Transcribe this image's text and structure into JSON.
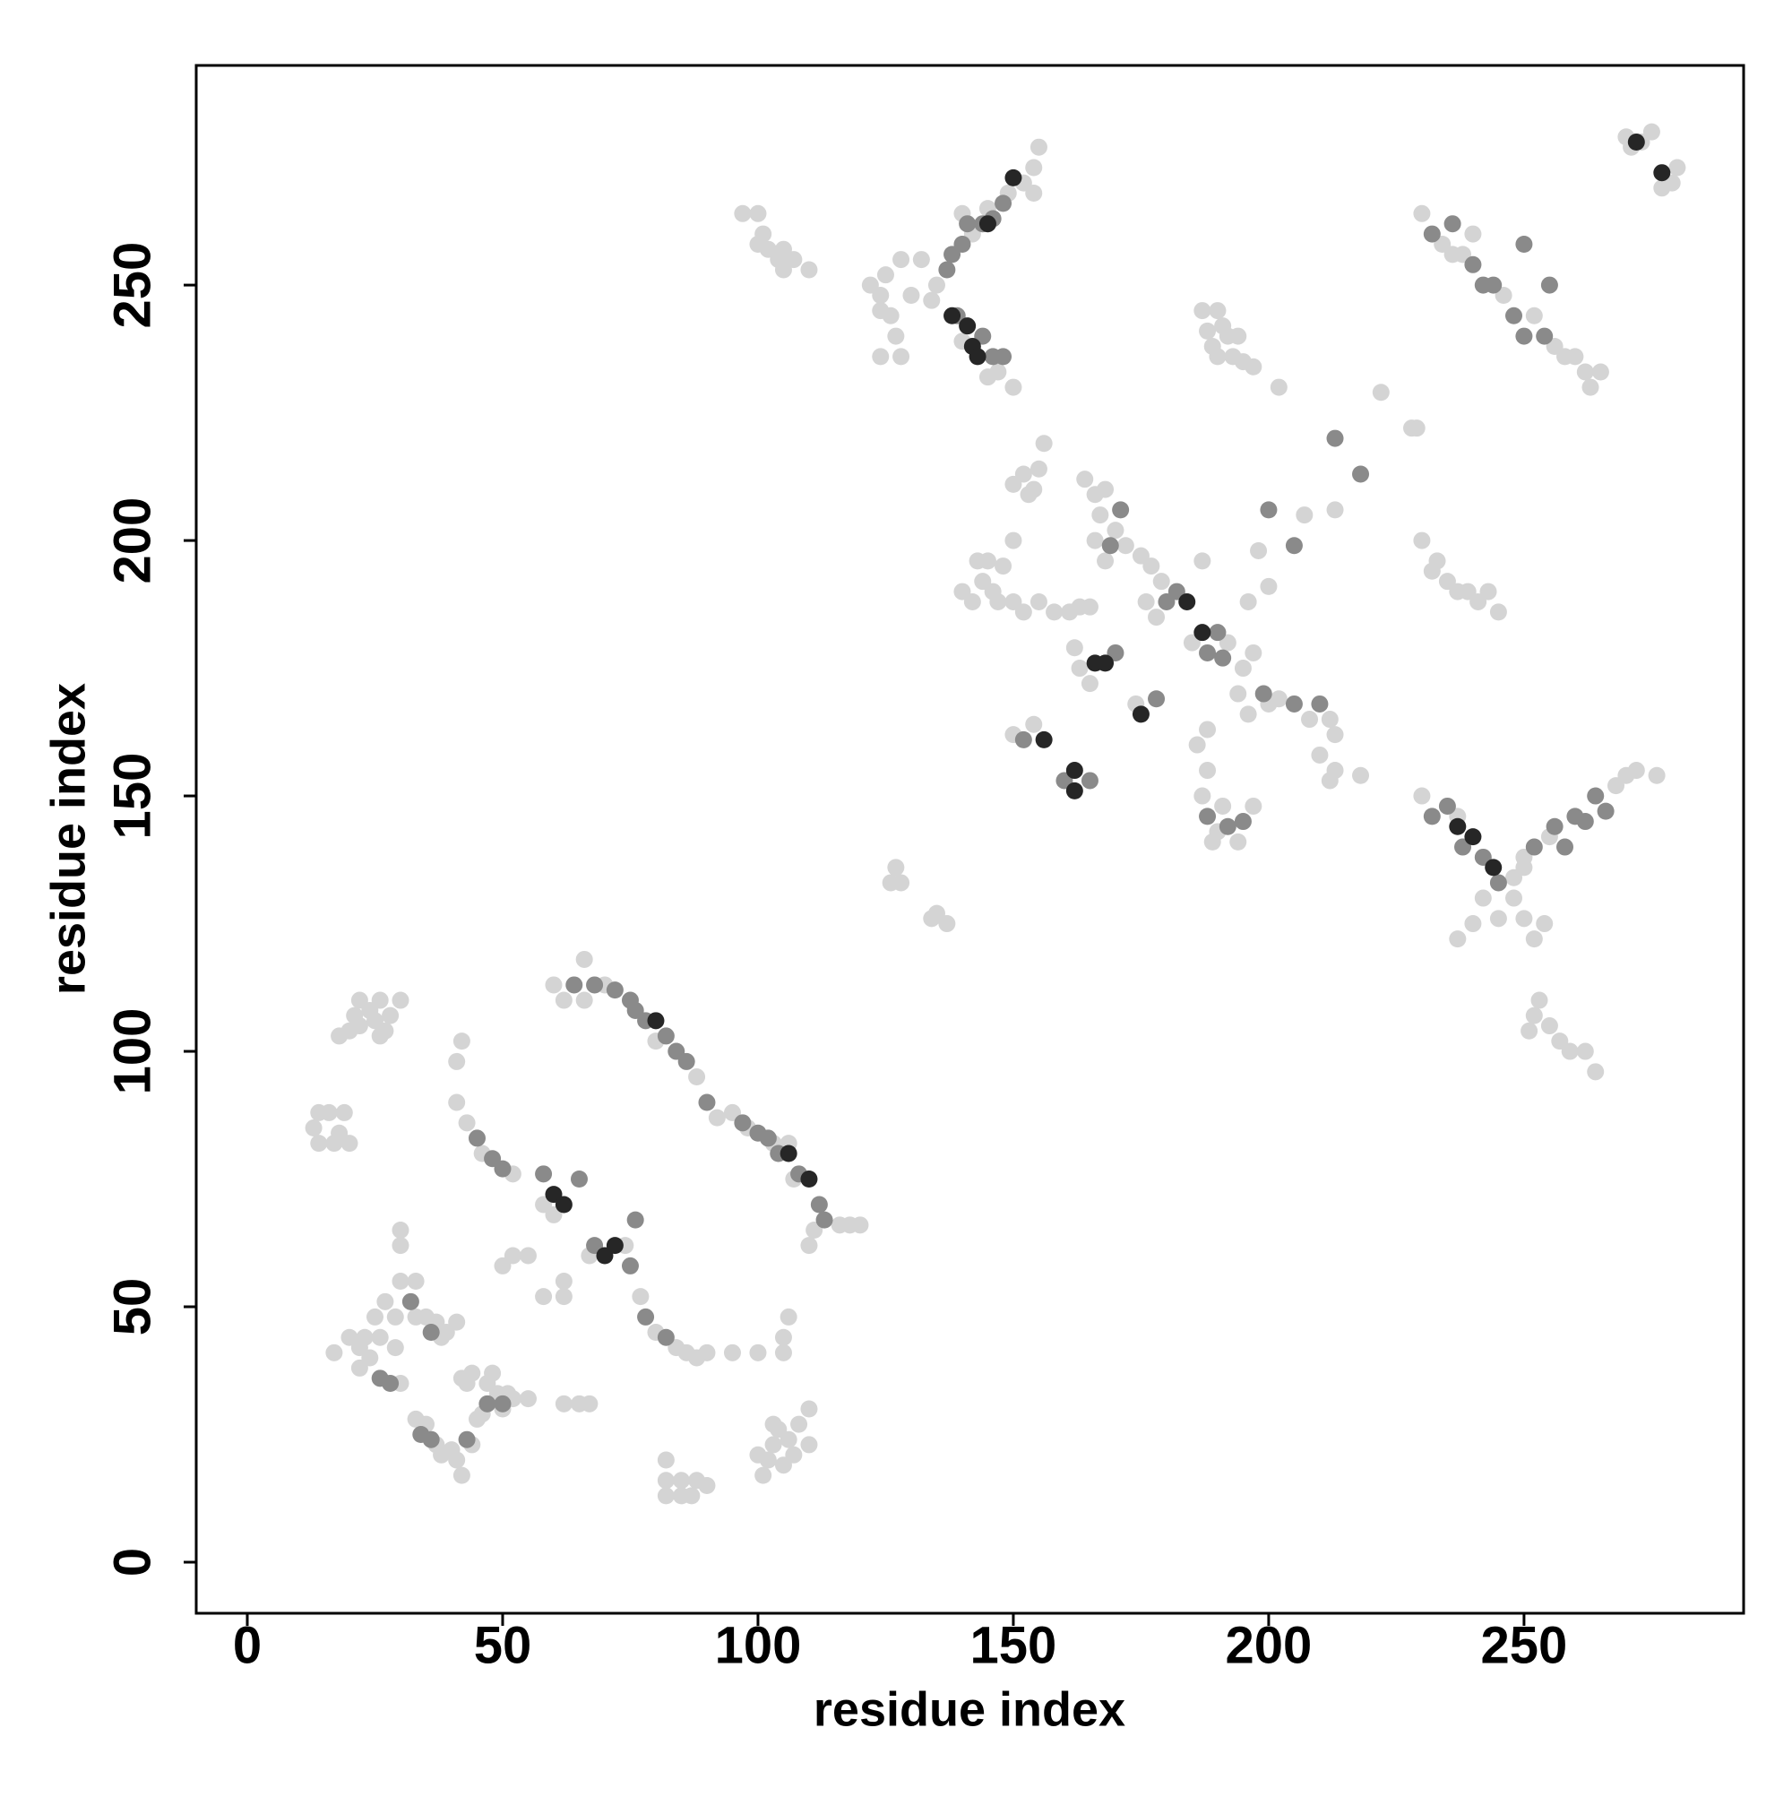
{
  "chart_data": {
    "type": "scatter",
    "x_label": "residue index",
    "y_label": "residue index",
    "xlim": [
      -10,
      293
    ],
    "ylim": [
      -10,
      293
    ],
    "xticks": [
      0,
      50,
      100,
      150,
      200,
      250
    ],
    "yticks": [
      0,
      50,
      100,
      150,
      200,
      250
    ],
    "series": [
      {
        "color": "#d4d4d4",
        "x": [
          60,
          62,
          66,
          70,
          66,
          80,
          88,
          92,
          95,
          98,
          103,
          106,
          107,
          111,
          110,
          116,
          118,
          120,
          42,
          41,
          41,
          43,
          46,
          52,
          60,
          58,
          67,
          74,
          58,
          62,
          55,
          52,
          50,
          62,
          77,
          80,
          84,
          86,
          88,
          90,
          95,
          100,
          105,
          106,
          105,
          18,
          20,
          21,
          22,
          24,
          25,
          26,
          27,
          28,
          30,
          22,
          26,
          13,
          14,
          16,
          17,
          18,
          19,
          20,
          14,
          30,
          30,
          30,
          33,
          33,
          35,
          37,
          38,
          39,
          41,
          25,
          26,
          24,
          22,
          20,
          22,
          17,
          23,
          30,
          29,
          27,
          29,
          33,
          35,
          37,
          38,
          40,
          41,
          42,
          44,
          45,
          46,
          47,
          48,
          49,
          51,
          50,
          52,
          55,
          43,
          44,
          42,
          82,
          82,
          82,
          85,
          85,
          87,
          88,
          90,
          101,
          102,
          103,
          104,
          105,
          106,
          107,
          108,
          110,
          110,
          103,
          100,
          62,
          65,
          67,
          97,
          100,
          101,
          102,
          104,
          105,
          105,
          107,
          110,
          100,
          134,
          135,
          142,
          145,
          149,
          152,
          154,
          155,
          154,
          140,
          150,
          145,
          140,
          147,
          122,
          124,
          125,
          126,
          127,
          128,
          124,
          130,
          128,
          132,
          124,
          270,
          273,
          275,
          271,
          279,
          280,
          277,
          230,
          234,
          238,
          246,
          252,
          256,
          258,
          260,
          262,
          263,
          265,
          240,
          236,
          187,
          188,
          189,
          190,
          191,
          192,
          193,
          194,
          195,
          197,
          202,
          190,
          213,
          198,
          196,
          200,
          207,
          222,
          228,
          229,
          150,
          152,
          154,
          155,
          156,
          153,
          164,
          166,
          167,
          168,
          170,
          172,
          168,
          166,
          140,
          142,
          144,
          145,
          146,
          147,
          148,
          150,
          150,
          152,
          155,
          158,
          161,
          163,
          165,
          143,
          175,
          177,
          179,
          187,
          176,
          178,
          185,
          192,
          195,
          197,
          200,
          202,
          208,
          212,
          213,
          196,
          194,
          210,
          212,
          213,
          218,
          186,
          188,
          187,
          190,
          191,
          194,
          197,
          188,
          189,
          150,
          154,
          163,
          174,
          162,
          165,
          230,
          248,
          250,
          255,
          268,
          270,
          272,
          276,
          248,
          250,
          252,
          254,
          245,
          240,
          237,
          250,
          242,
          237,
          251,
          252,
          253,
          255,
          257,
          259,
          262,
          264,
          126,
          127,
          128,
          134,
          135,
          137,
          230,
          233,
          235,
          237,
          239,
          241,
          243,
          245,
          232
        ],
        "values": [
          113,
          110,
          110,
          113,
          118,
          102,
          95,
          87,
          88,
          85,
          82,
          82,
          75,
          65,
          62,
          66,
          66,
          66,
          102,
          98,
          90,
          86,
          80,
          76,
          68,
          70,
          60,
          62,
          52,
          52,
          60,
          60,
          58,
          55,
          52,
          45,
          42,
          41,
          40,
          41,
          41,
          41,
          44,
          48,
          41,
          103,
          104,
          107,
          105,
          108,
          106,
          110,
          104,
          107,
          110,
          110,
          103,
          85,
          82,
          88,
          82,
          84,
          88,
          82,
          88,
          62,
          65,
          55,
          55,
          48,
          48,
          47,
          44,
          45,
          47,
          48,
          44,
          40,
          38,
          44,
          42,
          41,
          44,
          35,
          42,
          51,
          48,
          28,
          27,
          23,
          21,
          22,
          20,
          17,
          23,
          28,
          29,
          35,
          37,
          33,
          33,
          30,
          32,
          32,
          35,
          37,
          36,
          13,
          16,
          20,
          13,
          16,
          13,
          16,
          15,
          17,
          20,
          23,
          26,
          19,
          24,
          21,
          27,
          23,
          30,
          27,
          21,
          31,
          31,
          31,
          264,
          264,
          260,
          257,
          255,
          257,
          253,
          255,
          253,
          258,
          247,
          250,
          260,
          265,
          268,
          270,
          273,
          277,
          268,
          264,
          230,
          232,
          239,
          233,
          250,
          248,
          252,
          244,
          240,
          236,
          236,
          248,
          255,
          255,
          245,
          279,
          278,
          280,
          277,
          270,
          273,
          269,
          264,
          258,
          256,
          248,
          244,
          238,
          236,
          236,
          233,
          230,
          233,
          260,
          256,
          245,
          241,
          238,
          245,
          242,
          240,
          236,
          240,
          235,
          234,
          230,
          236,
          206,
          198,
          188,
          191,
          205,
          229,
          222,
          222,
          211,
          213,
          210,
          214,
          219,
          209,
          212,
          209,
          205,
          210,
          202,
          199,
          196,
          200,
          190,
          188,
          192,
          196,
          190,
          188,
          195,
          200,
          188,
          186,
          188,
          186,
          186,
          187,
          187,
          196,
          197,
          195,
          192,
          196,
          188,
          185,
          180,
          180,
          175,
          178,
          168,
          169,
          165,
          165,
          162,
          166,
          170,
          158,
          153,
          155,
          154,
          160,
          163,
          150,
          143,
          148,
          141,
          148,
          155,
          141,
          162,
          164,
          175,
          168,
          179,
          172,
          150,
          134,
          136,
          142,
          152,
          154,
          155,
          154,
          130,
          126,
          122,
          125,
          126,
          125,
          122,
          138,
          130,
          146,
          104,
          107,
          110,
          105,
          102,
          100,
          100,
          96,
          133,
          136,
          133,
          126,
          127,
          125,
          200,
          196,
          192,
          190,
          190,
          188,
          190,
          186,
          194
        ]
      },
      {
        "color": "#8a8a8a",
        "x": [
          64,
          68,
          72,
          75,
          76,
          78,
          82,
          84,
          86,
          90,
          97,
          100,
          102,
          104,
          108,
          112,
          113,
          58,
          65,
          76,
          75,
          68,
          50,
          45,
          48,
          78,
          82,
          32,
          36,
          26,
          28,
          34,
          36,
          43,
          47,
          50,
          137,
          138,
          140,
          141,
          144,
          146,
          148,
          139,
          144,
          146,
          148,
          232,
          236,
          240,
          242,
          244,
          248,
          250,
          254,
          250,
          255,
          232,
          235,
          238,
          242,
          245,
          256,
          258,
          260,
          262,
          264,
          266,
          188,
          190,
          199,
          205,
          210,
          152,
          160,
          165,
          170,
          178,
          169,
          171,
          180,
          182,
          191,
          188,
          192,
          195,
          200,
          205,
          213,
          218,
          252
        ],
        "values": [
          113,
          113,
          112,
          110,
          108,
          106,
          103,
          100,
          98,
          90,
          86,
          84,
          83,
          80,
          76,
          70,
          67,
          76,
          75,
          67,
          58,
          62,
          77,
          83,
          79,
          48,
          44,
          51,
          45,
          36,
          35,
          25,
          24,
          24,
          31,
          31,
          253,
          256,
          258,
          262,
          262,
          263,
          266,
          244,
          240,
          236,
          236,
          260,
          262,
          254,
          250,
          250,
          244,
          240,
          240,
          258,
          250,
          146,
          148,
          140,
          138,
          133,
          144,
          140,
          146,
          145,
          150,
          147,
          178,
          182,
          170,
          168,
          168,
          161,
          153,
          153,
          178,
          169,
          199,
          206,
          188,
          190,
          177,
          146,
          144,
          145,
          206,
          199,
          220,
          213,
          140
        ]
      },
      {
        "color": "#262626",
        "x": [
          60,
          62,
          70,
          72,
          138,
          141,
          142,
          166,
          168,
          175,
          156,
          162,
          162,
          240,
          244,
          272,
          277,
          80,
          106,
          184,
          187,
          145,
          150,
          143,
          110,
          237
        ],
        "values": [
          72,
          70,
          60,
          62,
          244,
          242,
          238,
          176,
          176,
          166,
          161,
          155,
          151,
          142,
          136,
          278,
          272,
          106,
          80,
          188,
          182,
          262,
          271,
          236,
          75,
          144
        ]
      }
    ]
  }
}
